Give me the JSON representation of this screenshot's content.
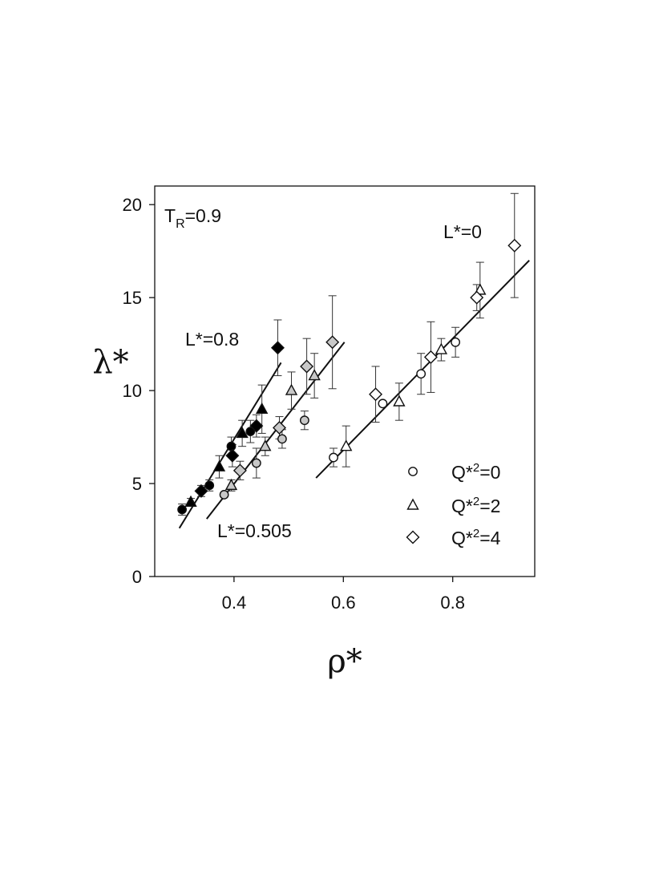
{
  "chart_data": {
    "type": "scatter",
    "xlabel": "ρ*",
    "ylabel": "λ*",
    "xlim": [
      0.255,
      0.95
    ],
    "ylim": [
      0,
      21
    ],
    "xticks": [
      0.4,
      0.6,
      0.8
    ],
    "xtick_labels": [
      "0.4",
      "0.6",
      "0.8"
    ],
    "yticks": [
      0,
      5,
      10,
      15,
      20
    ],
    "ytick_labels": [
      "0",
      "5",
      "10",
      "15",
      "20"
    ],
    "grid": false,
    "legend_position": "bottom-right",
    "annotations": {
      "tr_main": "T",
      "tr_sub": "R",
      "tr_value": "=0.9",
      "l0": "L*=0",
      "l08": "L*=0.8",
      "l0505": "L*=0.505"
    },
    "legend": [
      {
        "marker": "circle",
        "label_prefix": "Q*",
        "label_sup": "2",
        "label_suffix": "=0"
      },
      {
        "marker": "triangle",
        "label_prefix": "Q*",
        "label_sup": "2",
        "label_suffix": "=2"
      },
      {
        "marker": "diamond",
        "label_prefix": "Q*",
        "label_sup": "2",
        "label_suffix": "=4"
      }
    ],
    "fill_colors": {
      "L0": "#ffffff",
      "L0505": "#c8c8c8",
      "L08": "#000000"
    },
    "series": [
      {
        "group": "L0",
        "marker": "circle",
        "points": [
          {
            "x": 0.582,
            "y": 6.4,
            "err": 0.5
          },
          {
            "x": 0.672,
            "y": 9.3,
            "err": 0
          },
          {
            "x": 0.742,
            "y": 10.9,
            "err": 1.1
          },
          {
            "x": 0.805,
            "y": 12.6,
            "err": 0.8
          }
        ]
      },
      {
        "group": "L0",
        "marker": "triangle",
        "points": [
          {
            "x": 0.605,
            "y": 7.0,
            "err": 1.1
          },
          {
            "x": 0.702,
            "y": 9.4,
            "err": 1.0
          },
          {
            "x": 0.779,
            "y": 12.2,
            "err": 0.6
          },
          {
            "x": 0.85,
            "y": 15.4,
            "err": 1.5
          }
        ]
      },
      {
        "group": "L0",
        "marker": "diamond",
        "points": [
          {
            "x": 0.659,
            "y": 9.8,
            "err": 1.5
          },
          {
            "x": 0.76,
            "y": 11.8,
            "err": 1.9
          },
          {
            "x": 0.844,
            "y": 15.0,
            "err": 0.7
          },
          {
            "x": 0.913,
            "y": 17.8,
            "err": 2.8
          }
        ]
      },
      {
        "group": "L0505",
        "marker": "circle",
        "points": [
          {
            "x": 0.382,
            "y": 4.4,
            "err": 0
          },
          {
            "x": 0.441,
            "y": 6.1,
            "err": 0.8
          },
          {
            "x": 0.488,
            "y": 7.4,
            "err": 0.5
          },
          {
            "x": 0.529,
            "y": 8.4,
            "err": 0.5
          }
        ]
      },
      {
        "group": "L0505",
        "marker": "triangle",
        "points": [
          {
            "x": 0.395,
            "y": 4.9,
            "err": 0.3
          },
          {
            "x": 0.457,
            "y": 7.0,
            "err": 0.5
          },
          {
            "x": 0.505,
            "y": 10.0,
            "err": 1.0
          },
          {
            "x": 0.547,
            "y": 10.8,
            "err": 1.2
          }
        ]
      },
      {
        "group": "L0505",
        "marker": "diamond",
        "points": [
          {
            "x": 0.411,
            "y": 5.7,
            "err": 0.5
          },
          {
            "x": 0.483,
            "y": 8.0,
            "err": 0.6
          },
          {
            "x": 0.533,
            "y": 11.3,
            "err": 1.5
          },
          {
            "x": 0.58,
            "y": 12.6,
            "err": 2.5
          }
        ]
      },
      {
        "group": "L08",
        "marker": "circle",
        "points": [
          {
            "x": 0.305,
            "y": 3.6,
            "err": 0.3
          },
          {
            "x": 0.355,
            "y": 4.9,
            "err": 0.3
          },
          {
            "x": 0.395,
            "y": 7.0,
            "err": 0.5
          },
          {
            "x": 0.43,
            "y": 7.8,
            "err": 0.6
          }
        ]
      },
      {
        "group": "L08",
        "marker": "triangle",
        "points": [
          {
            "x": 0.321,
            "y": 4.0,
            "err": 0.2
          },
          {
            "x": 0.373,
            "y": 5.9,
            "err": 0.6
          },
          {
            "x": 0.415,
            "y": 7.7,
            "err": 0.7
          },
          {
            "x": 0.451,
            "y": 9.0,
            "err": 1.3
          }
        ]
      },
      {
        "group": "L08",
        "marker": "diamond",
        "points": [
          {
            "x": 0.34,
            "y": 4.6,
            "err": 0.3
          },
          {
            "x": 0.397,
            "y": 6.5,
            "err": 0.6
          },
          {
            "x": 0.441,
            "y": 8.1,
            "err": 0.6
          },
          {
            "x": 0.48,
            "y": 12.3,
            "err": 1.5
          }
        ]
      }
    ],
    "fit_lines": [
      {
        "group": "L08",
        "x": [
          0.3,
          0.486
        ],
        "y": [
          2.6,
          11.5
        ]
      },
      {
        "group": "L0505",
        "x": [
          0.35,
          0.602
        ],
        "y": [
          3.1,
          12.6
        ]
      },
      {
        "group": "L0",
        "x": [
          0.55,
          0.94
        ],
        "y": [
          5.3,
          17.0
        ]
      }
    ]
  }
}
